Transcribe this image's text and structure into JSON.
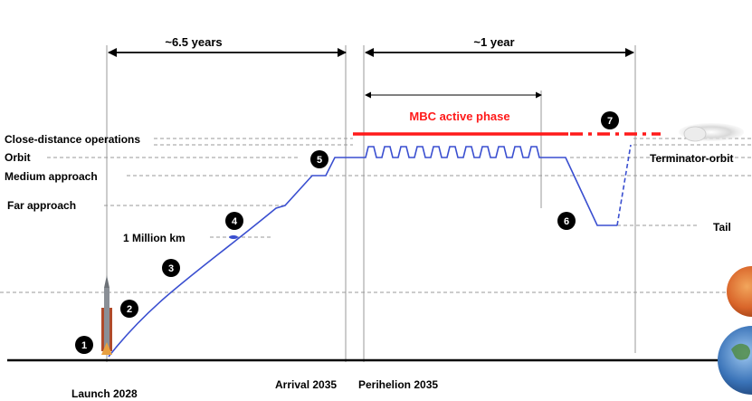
{
  "durations": {
    "cruise": "~6.5 years",
    "proximity": "~1 year"
  },
  "levels": {
    "close_distance": "Close-distance operations",
    "orbit": "Orbit",
    "medium_approach": "Medium approach",
    "far_approach": "Far approach",
    "terminator_orbit": "Terminator-orbit",
    "tail": "Tail"
  },
  "milestone_label": "1 Million km",
  "active_phase": "MBC active phase",
  "events": {
    "launch": "Launch 2028",
    "arrival": "Arrival 2035",
    "perihelion": "Perihelion 2035"
  },
  "steps": [
    "1",
    "2",
    "3",
    "4",
    "5",
    "6",
    "7"
  ],
  "colors": {
    "trajectory": "#3a4fd0",
    "active_phase": "#ff1a1a",
    "guide": "#999999",
    "axis": "#000000"
  }
}
